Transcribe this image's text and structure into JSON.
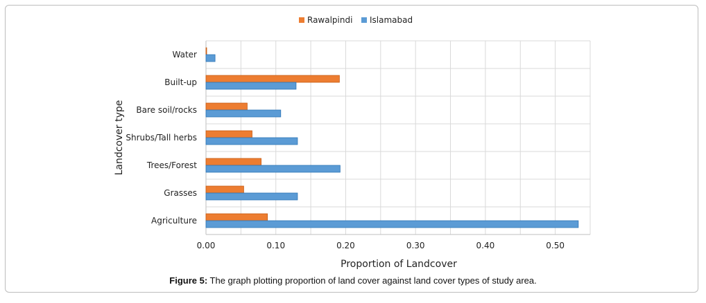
{
  "chart_data": {
    "type": "bar",
    "orientation": "horizontal",
    "categories": [
      "Water",
      "Built-up",
      "Bare soil/rocks",
      "Shrubs/Tall herbs",
      "Trees/Forest",
      "Grasses",
      "Agriculture"
    ],
    "series": [
      {
        "name": "Rawalpindi",
        "color": "#ED7D31",
        "values": [
          0.001,
          0.191,
          0.059,
          0.066,
          0.079,
          0.054,
          0.088
        ]
      },
      {
        "name": "Islamabad",
        "color": "#5B9BD5",
        "values": [
          0.013,
          0.129,
          0.107,
          0.131,
          0.192,
          0.131,
          0.533
        ]
      }
    ],
    "xlabel": "Proportion of Landcover",
    "ylabel": "Landcover type",
    "xlim": [
      0,
      0.55
    ],
    "xticks": [
      "0.00",
      "0.10",
      "0.20",
      "0.30",
      "0.40",
      "0.50"
    ],
    "tick_values": [
      0,
      0.1,
      0.2,
      0.3,
      0.4,
      0.5
    ],
    "grid": true,
    "legend_position": "top"
  },
  "caption": {
    "label": "Figure 5:",
    "text": " The graph plotting proportion of land cover against land cover types of study area."
  }
}
